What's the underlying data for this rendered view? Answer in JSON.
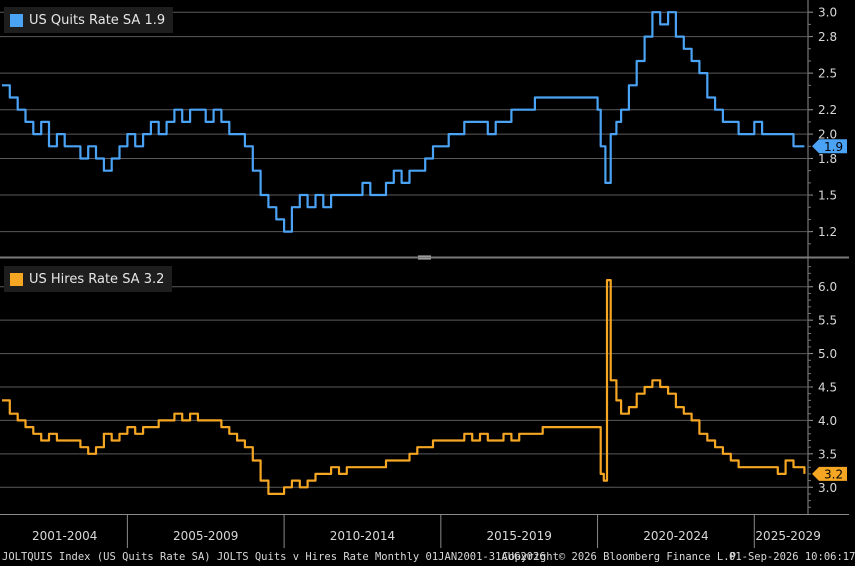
{
  "footer": {
    "left": "JOLTQUIS Index (US Quits Rate SA) JOLTS Quits v Hires Rate Monthly 01JAN2001-31AUG2026",
    "center": "Copyright© 2026 Bloomberg Finance L.P.",
    "right": "01-Sep-2026 10:06:17"
  },
  "colors": {
    "quits": "#4ba3f5",
    "hires": "#f5a623",
    "grid": "#5a5a5a",
    "background": "#000000"
  },
  "chart_data": [
    {
      "type": "line",
      "title": "US Quits Rate SA 1.9",
      "series": [
        {
          "name": "US Quits Rate SA",
          "last_value": "1.9",
          "color": "#4ba3f5"
        }
      ],
      "x_range": [
        "2001-01",
        "2026-08"
      ],
      "ylim": [
        1.0,
        3.1
      ],
      "yticks": [
        "1.2",
        "1.5",
        "1.8",
        "2.0",
        "2.2",
        "2.5",
        "2.8",
        "3.0"
      ],
      "points": [
        [
          2001.0,
          2.4
        ],
        [
          2001.25,
          2.3
        ],
        [
          2001.5,
          2.2
        ],
        [
          2001.75,
          2.1
        ],
        [
          2002.0,
          2.0
        ],
        [
          2002.25,
          2.1
        ],
        [
          2002.5,
          1.9
        ],
        [
          2002.75,
          2.0
        ],
        [
          2003.0,
          1.9
        ],
        [
          2003.25,
          1.9
        ],
        [
          2003.5,
          1.8
        ],
        [
          2003.75,
          1.9
        ],
        [
          2004.0,
          1.8
        ],
        [
          2004.25,
          1.7
        ],
        [
          2004.5,
          1.8
        ],
        [
          2004.75,
          1.9
        ],
        [
          2005.0,
          2.0
        ],
        [
          2005.25,
          1.9
        ],
        [
          2005.5,
          2.0
        ],
        [
          2005.75,
          2.1
        ],
        [
          2006.0,
          2.0
        ],
        [
          2006.25,
          2.1
        ],
        [
          2006.5,
          2.2
        ],
        [
          2006.75,
          2.1
        ],
        [
          2007.0,
          2.2
        ],
        [
          2007.25,
          2.2
        ],
        [
          2007.5,
          2.1
        ],
        [
          2007.75,
          2.2
        ],
        [
          2008.0,
          2.1
        ],
        [
          2008.25,
          2.0
        ],
        [
          2008.5,
          2.0
        ],
        [
          2008.75,
          1.9
        ],
        [
          2009.0,
          1.7
        ],
        [
          2009.25,
          1.5
        ],
        [
          2009.5,
          1.4
        ],
        [
          2009.75,
          1.3
        ],
        [
          2010.0,
          1.2
        ],
        [
          2010.25,
          1.4
        ],
        [
          2010.5,
          1.5
        ],
        [
          2010.75,
          1.4
        ],
        [
          2011.0,
          1.5
        ],
        [
          2011.25,
          1.4
        ],
        [
          2011.5,
          1.5
        ],
        [
          2011.75,
          1.5
        ],
        [
          2012.0,
          1.5
        ],
        [
          2012.25,
          1.5
        ],
        [
          2012.5,
          1.6
        ],
        [
          2012.75,
          1.5
        ],
        [
          2013.0,
          1.5
        ],
        [
          2013.25,
          1.6
        ],
        [
          2013.5,
          1.7
        ],
        [
          2013.75,
          1.6
        ],
        [
          2014.0,
          1.7
        ],
        [
          2014.25,
          1.7
        ],
        [
          2014.5,
          1.8
        ],
        [
          2014.75,
          1.9
        ],
        [
          2015.0,
          1.9
        ],
        [
          2015.25,
          2.0
        ],
        [
          2015.5,
          2.0
        ],
        [
          2015.75,
          2.1
        ],
        [
          2016.0,
          2.1
        ],
        [
          2016.25,
          2.1
        ],
        [
          2016.5,
          2.0
        ],
        [
          2016.75,
          2.1
        ],
        [
          2017.0,
          2.1
        ],
        [
          2017.25,
          2.2
        ],
        [
          2017.5,
          2.2
        ],
        [
          2017.75,
          2.2
        ],
        [
          2018.0,
          2.3
        ],
        [
          2018.25,
          2.3
        ],
        [
          2018.5,
          2.3
        ],
        [
          2018.75,
          2.3
        ],
        [
          2019.0,
          2.3
        ],
        [
          2019.25,
          2.3
        ],
        [
          2019.5,
          2.3
        ],
        [
          2019.75,
          2.3
        ],
        [
          2020.0,
          2.2
        ],
        [
          2020.1,
          1.9
        ],
        [
          2020.25,
          1.6
        ],
        [
          2020.42,
          2.0
        ],
        [
          2020.6,
          2.1
        ],
        [
          2020.75,
          2.2
        ],
        [
          2021.0,
          2.4
        ],
        [
          2021.25,
          2.6
        ],
        [
          2021.5,
          2.8
        ],
        [
          2021.75,
          3.0
        ],
        [
          2022.0,
          2.9
        ],
        [
          2022.25,
          3.0
        ],
        [
          2022.5,
          2.8
        ],
        [
          2022.75,
          2.7
        ],
        [
          2023.0,
          2.6
        ],
        [
          2023.25,
          2.5
        ],
        [
          2023.5,
          2.3
        ],
        [
          2023.75,
          2.2
        ],
        [
          2024.0,
          2.1
        ],
        [
          2024.25,
          2.1
        ],
        [
          2024.5,
          2.0
        ],
        [
          2024.75,
          2.0
        ],
        [
          2025.0,
          2.1
        ],
        [
          2025.25,
          2.0
        ],
        [
          2025.5,
          2.0
        ],
        [
          2025.75,
          2.0
        ],
        [
          2026.0,
          2.0
        ],
        [
          2026.25,
          1.9
        ],
        [
          2026.6,
          1.9
        ]
      ]
    },
    {
      "type": "line",
      "title": "US Hires Rate SA 3.2",
      "series": [
        {
          "name": "US Hires Rate SA",
          "last_value": "3.2",
          "color": "#f5a623"
        }
      ],
      "x_range": [
        "2001-01",
        "2026-08"
      ],
      "ylim": [
        2.6,
        6.4
      ],
      "yticks": [
        "3.0",
        "3.5",
        "4.0",
        "4.5",
        "5.0",
        "5.5",
        "6.0"
      ],
      "xticks": [
        "2001-2004",
        "2005-2009",
        "2010-2014",
        "2015-2019",
        "2020-2024",
        "2025-2029"
      ],
      "points": [
        [
          2001.0,
          4.3
        ],
        [
          2001.25,
          4.1
        ],
        [
          2001.5,
          4.0
        ],
        [
          2001.75,
          3.9
        ],
        [
          2002.0,
          3.8
        ],
        [
          2002.25,
          3.7
        ],
        [
          2002.5,
          3.8
        ],
        [
          2002.75,
          3.7
        ],
        [
          2003.0,
          3.7
        ],
        [
          2003.25,
          3.7
        ],
        [
          2003.5,
          3.6
        ],
        [
          2003.75,
          3.5
        ],
        [
          2004.0,
          3.6
        ],
        [
          2004.25,
          3.8
        ],
        [
          2004.5,
          3.7
        ],
        [
          2004.75,
          3.8
        ],
        [
          2005.0,
          3.9
        ],
        [
          2005.25,
          3.8
        ],
        [
          2005.5,
          3.9
        ],
        [
          2005.75,
          3.9
        ],
        [
          2006.0,
          4.0
        ],
        [
          2006.25,
          4.0
        ],
        [
          2006.5,
          4.1
        ],
        [
          2006.75,
          4.0
        ],
        [
          2007.0,
          4.1
        ],
        [
          2007.25,
          4.0
        ],
        [
          2007.5,
          4.0
        ],
        [
          2007.75,
          4.0
        ],
        [
          2008.0,
          3.9
        ],
        [
          2008.25,
          3.8
        ],
        [
          2008.5,
          3.7
        ],
        [
          2008.75,
          3.6
        ],
        [
          2009.0,
          3.4
        ],
        [
          2009.25,
          3.1
        ],
        [
          2009.5,
          2.9
        ],
        [
          2009.75,
          2.9
        ],
        [
          2010.0,
          3.0
        ],
        [
          2010.25,
          3.1
        ],
        [
          2010.5,
          3.0
        ],
        [
          2010.75,
          3.1
        ],
        [
          2011.0,
          3.2
        ],
        [
          2011.25,
          3.2
        ],
        [
          2011.5,
          3.3
        ],
        [
          2011.75,
          3.2
        ],
        [
          2012.0,
          3.3
        ],
        [
          2012.25,
          3.3
        ],
        [
          2012.5,
          3.3
        ],
        [
          2012.75,
          3.3
        ],
        [
          2013.0,
          3.3
        ],
        [
          2013.25,
          3.4
        ],
        [
          2013.5,
          3.4
        ],
        [
          2013.75,
          3.4
        ],
        [
          2014.0,
          3.5
        ],
        [
          2014.25,
          3.6
        ],
        [
          2014.5,
          3.6
        ],
        [
          2014.75,
          3.7
        ],
        [
          2015.0,
          3.7
        ],
        [
          2015.25,
          3.7
        ],
        [
          2015.5,
          3.7
        ],
        [
          2015.75,
          3.8
        ],
        [
          2016.0,
          3.7
        ],
        [
          2016.25,
          3.8
        ],
        [
          2016.5,
          3.7
        ],
        [
          2016.75,
          3.7
        ],
        [
          2017.0,
          3.8
        ],
        [
          2017.25,
          3.7
        ],
        [
          2017.5,
          3.8
        ],
        [
          2017.75,
          3.8
        ],
        [
          2018.0,
          3.8
        ],
        [
          2018.25,
          3.9
        ],
        [
          2018.5,
          3.9
        ],
        [
          2018.75,
          3.9
        ],
        [
          2019.0,
          3.9
        ],
        [
          2019.25,
          3.9
        ],
        [
          2019.5,
          3.9
        ],
        [
          2019.75,
          3.9
        ],
        [
          2020.0,
          3.9
        ],
        [
          2020.1,
          3.2
        ],
        [
          2020.2,
          3.1
        ],
        [
          2020.3,
          6.1
        ],
        [
          2020.42,
          4.6
        ],
        [
          2020.6,
          4.3
        ],
        [
          2020.75,
          4.1
        ],
        [
          2021.0,
          4.2
        ],
        [
          2021.25,
          4.4
        ],
        [
          2021.5,
          4.5
        ],
        [
          2021.75,
          4.6
        ],
        [
          2022.0,
          4.5
        ],
        [
          2022.25,
          4.4
        ],
        [
          2022.5,
          4.2
        ],
        [
          2022.75,
          4.1
        ],
        [
          2023.0,
          4.0
        ],
        [
          2023.25,
          3.8
        ],
        [
          2023.5,
          3.7
        ],
        [
          2023.75,
          3.6
        ],
        [
          2024.0,
          3.5
        ],
        [
          2024.25,
          3.4
        ],
        [
          2024.5,
          3.3
        ],
        [
          2024.75,
          3.3
        ],
        [
          2025.0,
          3.3
        ],
        [
          2025.25,
          3.3
        ],
        [
          2025.5,
          3.3
        ],
        [
          2025.75,
          3.2
        ],
        [
          2026.0,
          3.4
        ],
        [
          2026.25,
          3.3
        ],
        [
          2026.6,
          3.2
        ]
      ]
    }
  ]
}
